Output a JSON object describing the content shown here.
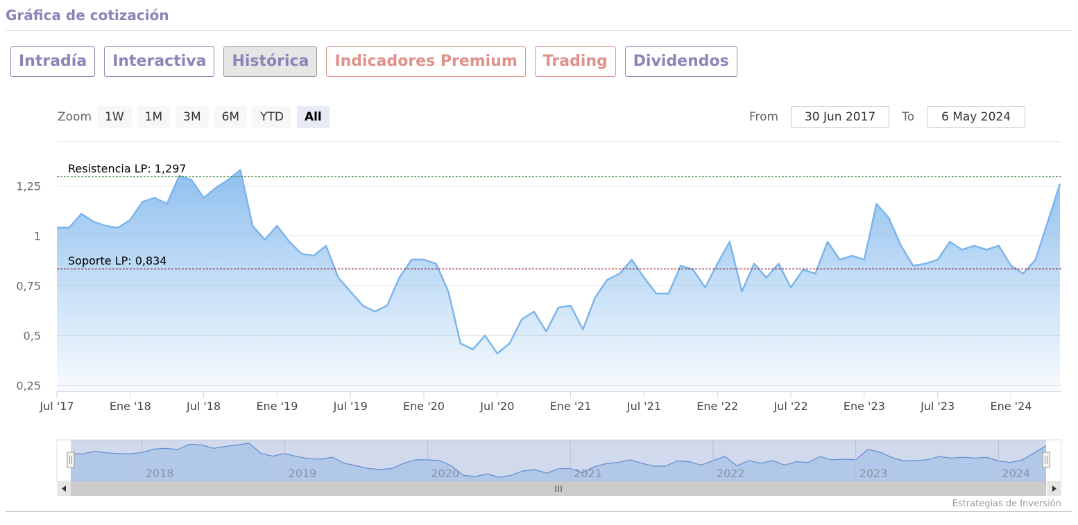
{
  "header": {
    "title": "Gráfica de cotización"
  },
  "tabs": [
    {
      "label": "Intradía",
      "color": "#8e83b8",
      "active": false
    },
    {
      "label": "Interactiva",
      "color": "#8e83b8",
      "active": false
    },
    {
      "label": "Histórica",
      "color": "#8e83b8",
      "active": true
    },
    {
      "label": "Indicadores Premium",
      "color": "#e0918a",
      "active": false
    },
    {
      "label": "Trading",
      "color": "#e0918a",
      "active": false
    },
    {
      "label": "Dividendos",
      "color": "#8e83b8",
      "active": false
    }
  ],
  "range_selector": {
    "zoom_label": "Zoom",
    "buttons": [
      {
        "label": "1W",
        "active": false
      },
      {
        "label": "1M",
        "active": false
      },
      {
        "label": "3M",
        "active": false
      },
      {
        "label": "6M",
        "active": false
      },
      {
        "label": "YTD",
        "active": false
      },
      {
        "label": "All",
        "active": true
      }
    ],
    "from_label": "From",
    "from": "30 Jun 2017",
    "to_label": "To",
    "to": "6 May 2024"
  },
  "chart_data": {
    "type": "area",
    "color": "#7cb5ec",
    "x": [
      "2017-07",
      "2017-08",
      "2017-09",
      "2017-10",
      "2017-11",
      "2017-12",
      "2018-01",
      "2018-02",
      "2018-03",
      "2018-04",
      "2018-05",
      "2018-06",
      "2018-07",
      "2018-08",
      "2018-09",
      "2018-10",
      "2018-11",
      "2018-12",
      "2019-01",
      "2019-02",
      "2019-03",
      "2019-04",
      "2019-05",
      "2019-06",
      "2019-07",
      "2019-08",
      "2019-09",
      "2019-10",
      "2019-11",
      "2019-12",
      "2020-01",
      "2020-02",
      "2020-03",
      "2020-04",
      "2020-05",
      "2020-06",
      "2020-07",
      "2020-08",
      "2020-09",
      "2020-10",
      "2020-11",
      "2020-12",
      "2021-01",
      "2021-02",
      "2021-03",
      "2021-04",
      "2021-05",
      "2021-06",
      "2021-07",
      "2021-08",
      "2021-09",
      "2021-10",
      "2021-11",
      "2021-12",
      "2022-01",
      "2022-02",
      "2022-03",
      "2022-04",
      "2022-05",
      "2022-06",
      "2022-07",
      "2022-08",
      "2022-09",
      "2022-10",
      "2022-11",
      "2022-12",
      "2023-01",
      "2023-02",
      "2023-03",
      "2023-04",
      "2023-05",
      "2023-06",
      "2023-07",
      "2023-08",
      "2023-09",
      "2023-10",
      "2023-11",
      "2023-12",
      "2024-01",
      "2024-02",
      "2024-03",
      "2024-04",
      "2024-05"
    ],
    "values": [
      1.04,
      1.04,
      1.11,
      1.07,
      1.05,
      1.04,
      1.08,
      1.17,
      1.19,
      1.16,
      1.3,
      1.28,
      1.19,
      1.24,
      1.28,
      1.33,
      1.05,
      0.98,
      1.05,
      0.97,
      0.91,
      0.9,
      0.95,
      0.79,
      0.72,
      0.65,
      0.62,
      0.65,
      0.79,
      0.88,
      0.88,
      0.86,
      0.72,
      0.46,
      0.43,
      0.5,
      0.41,
      0.46,
      0.58,
      0.62,
      0.52,
      0.64,
      0.65,
      0.53,
      0.69,
      0.78,
      0.81,
      0.88,
      0.79,
      0.71,
      0.71,
      0.85,
      0.83,
      0.74,
      0.86,
      0.97,
      0.72,
      0.86,
      0.79,
      0.86,
      0.74,
      0.83,
      0.81,
      0.97,
      0.88,
      0.9,
      0.88,
      1.16,
      1.09,
      0.95,
      0.85,
      0.86,
      0.88,
      0.97,
      0.93,
      0.95,
      0.93,
      0.95,
      0.85,
      0.81,
      0.88,
      1.07,
      1.26
    ],
    "xlim": [
      "2017-07",
      "2024-05"
    ],
    "xticks": [
      {
        "value": "2017-07",
        "label": "Jul '17"
      },
      {
        "value": "2018-01",
        "label": "Ene '18"
      },
      {
        "value": "2018-07",
        "label": "Jul '18"
      },
      {
        "value": "2019-01",
        "label": "Ene '19"
      },
      {
        "value": "2019-07",
        "label": "Jul '19"
      },
      {
        "value": "2020-01",
        "label": "Ene '20"
      },
      {
        "value": "2020-07",
        "label": "Jul '20"
      },
      {
        "value": "2021-01",
        "label": "Ene '21"
      },
      {
        "value": "2021-07",
        "label": "Jul '21"
      },
      {
        "value": "2022-01",
        "label": "Ene '22"
      },
      {
        "value": "2022-07",
        "label": "Jul '22"
      },
      {
        "value": "2023-01",
        "label": "Ene '23"
      },
      {
        "value": "2023-07",
        "label": "Jul '23"
      },
      {
        "value": "2024-01",
        "label": "Ene '24"
      }
    ],
    "ylim": [
      0.22,
      1.47
    ],
    "yticks": [
      {
        "value": 0.25,
        "label": "0,25"
      },
      {
        "value": 0.5,
        "label": "0,5"
      },
      {
        "value": 0.75,
        "label": "0,75"
      },
      1,
      {
        "value": 1.25,
        "label": "1,25"
      }
    ],
    "grid": true,
    "plot_lines": [
      {
        "value": 1.297,
        "label": "Resistencia LP: 1,297",
        "color": "#2e7d32"
      },
      {
        "value": 0.834,
        "label": "Soporte LP: 0,834",
        "color": "#8b1a1a"
      }
    ],
    "navigator": {
      "ylim": [
        0.3,
        1.42
      ],
      "xticks": [
        {
          "value": "2018-01",
          "label": "2018"
        },
        {
          "value": "2019-01",
          "label": "2019"
        },
        {
          "value": "2020-01",
          "label": "2020"
        },
        {
          "value": "2021-01",
          "label": "2021"
        },
        {
          "value": "2022-01",
          "label": "2022"
        },
        {
          "value": "2023-01",
          "label": "2023"
        },
        {
          "value": "2024-01",
          "label": "2024"
        }
      ]
    },
    "credits": "Estrategias de Inversión"
  }
}
